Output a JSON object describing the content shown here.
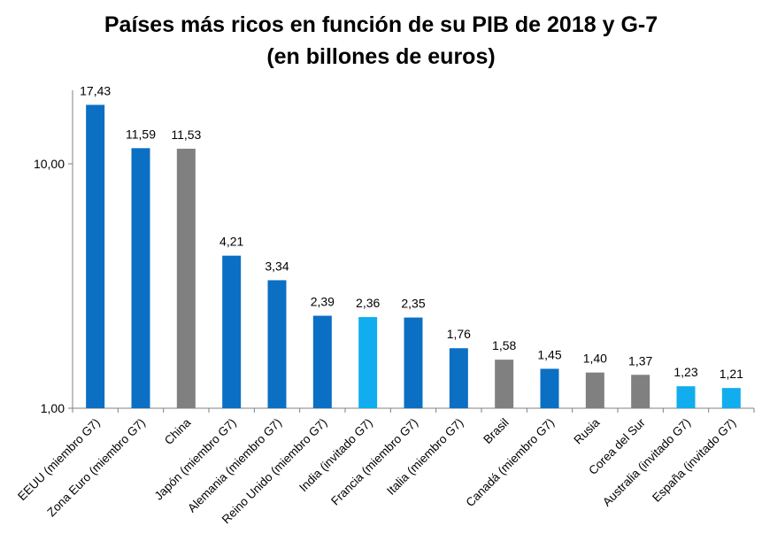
{
  "chart_data": {
    "type": "bar",
    "title_line1": "Países más ricos en función de su PIB de 2018 y G-7",
    "title_line2": "(en billones de euros)",
    "y_scale": "log",
    "ylim": [
      1,
      20
    ],
    "yticks": [
      {
        "value": 1,
        "label": "1,00"
      },
      {
        "value": 10,
        "label": "10,00"
      }
    ],
    "grid": false,
    "legend": "none",
    "categories": [
      "EEUU  (miembro G7)",
      "Zona Euro  (miembro G7)",
      "China",
      "Japón  (miembro G7)",
      "Alemania  (miembro G7)",
      "Reino Unido  (miembro G7)",
      "India (invitado G7)",
      "Francia  (miembro G7)",
      "Italia  (miembro G7)",
      "Brasil",
      "Canadá  (miembro G7)",
      "Rusia",
      "Corea del Sur",
      "Australia  (invitado G7)",
      "España  (invitado G7)"
    ],
    "values": [
      17.43,
      11.59,
      11.53,
      4.21,
      3.34,
      2.39,
      2.36,
      2.35,
      1.76,
      1.58,
      1.45,
      1.4,
      1.37,
      1.23,
      1.21
    ],
    "value_labels": [
      "17,43",
      "11,59",
      "11,53",
      "4,21",
      "3,34",
      "2,39",
      "2,36",
      "2,35",
      "1,76",
      "1,58",
      "1,45",
      "1,40",
      "1,37",
      "1,23",
      "1,21"
    ],
    "groups": [
      "member",
      "member",
      "other",
      "member",
      "member",
      "member",
      "guest",
      "member",
      "member",
      "other",
      "member",
      "other",
      "other",
      "guest",
      "guest"
    ],
    "colors": {
      "member": "#0b6fc4",
      "guest": "#11adee",
      "other": "#808080",
      "axis": "#808080"
    }
  }
}
